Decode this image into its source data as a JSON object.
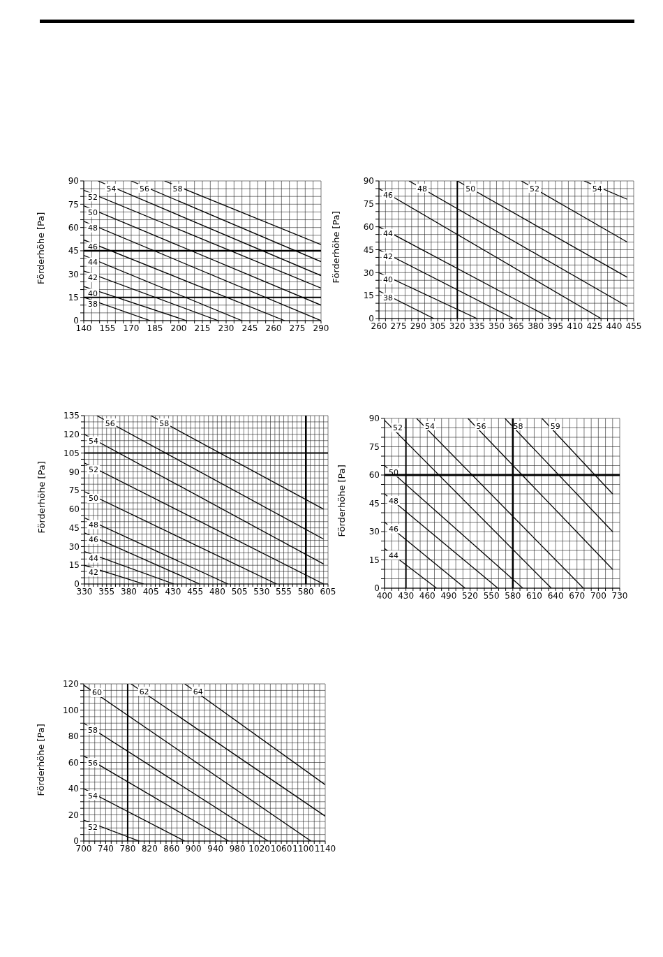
{
  "chart_data": [
    {
      "type": "line",
      "ylabel": "Förderhöhe [Pa]",
      "xlim": [
        140,
        290
      ],
      "ylim": [
        0,
        90
      ],
      "grid": true,
      "legend": false,
      "marker": "none",
      "line_style": "solid",
      "xticks": [
        140,
        {
          "value": 145,
          "label": null
        },
        {
          "value": 150,
          "label": null
        },
        155,
        {
          "value": 160,
          "label": null
        },
        {
          "value": 165,
          "label": null
        },
        170,
        {
          "value": 175,
          "label": null
        },
        {
          "value": 180,
          "label": null
        },
        185,
        {
          "value": 190,
          "label": null
        },
        {
          "value": 195,
          "label": null
        },
        200,
        {
          "value": 205,
          "label": null
        },
        {
          "value": 210,
          "label": null
        },
        215,
        {
          "value": 220,
          "label": null
        },
        {
          "value": 225,
          "label": null
        },
        230,
        {
          "value": 235,
          "label": null
        },
        {
          "value": 240,
          "label": null
        },
        245,
        {
          "value": 250,
          "label": null
        },
        {
          "value": 255,
          "label": null
        },
        260,
        {
          "value": 265,
          "label": null
        },
        {
          "value": 270,
          "label": null
        },
        275,
        {
          "value": 280,
          "label": null
        },
        {
          "value": 285,
          "label": null
        },
        290
      ],
      "yticks": [
        0,
        {
          "value": 5,
          "label": null
        },
        {
          "value": 10,
          "label": null
        },
        15,
        {
          "value": 20,
          "label": null
        },
        {
          "value": 25,
          "label": null
        },
        30,
        {
          "value": 35,
          "label": null
        },
        {
          "value": 40,
          "label": null
        },
        45,
        {
          "value": 50,
          "label": null
        },
        {
          "value": 55,
          "label": null
        },
        60,
        {
          "value": 65,
          "label": null
        },
        {
          "value": 70,
          "label": null
        },
        75,
        {
          "value": 80,
          "label": null
        },
        {
          "value": 85,
          "label": null
        },
        90
      ],
      "ref_lines": [
        {
          "axis": "y",
          "value": 15
        },
        {
          "axis": "y",
          "value": 45
        }
      ],
      "series": [
        {
          "name": "38",
          "color": "#000000",
          "x": [
            140,
            182
          ],
          "values": [
            15,
            0
          ]
        },
        {
          "name": "40",
          "color": "#000000",
          "x": [
            140,
            205
          ],
          "values": [
            22,
            0
          ]
        },
        {
          "name": "42",
          "color": "#000000",
          "x": [
            140,
            225
          ],
          "values": [
            32,
            0
          ]
        },
        {
          "name": "44",
          "color": "#000000",
          "x": [
            140,
            240
          ],
          "values": [
            42,
            0
          ]
        },
        {
          "name": "46",
          "color": "#000000",
          "x": [
            140,
            267
          ],
          "values": [
            52,
            0
          ]
        },
        {
          "name": "48",
          "color": "#000000",
          "x": [
            140,
            290
          ],
          "values": [
            64,
            0
          ]
        },
        {
          "name": "50",
          "color": "#000000",
          "x": [
            140,
            290
          ],
          "values": [
            74,
            10
          ]
        },
        {
          "name": "52",
          "color": "#000000",
          "x": [
            140,
            290
          ],
          "values": [
            84,
            21
          ]
        },
        {
          "name": "54",
          "color": "#000000",
          "x": [
            149,
            290
          ],
          "values": [
            90,
            29
          ]
        },
        {
          "name": "56",
          "color": "#000000",
          "x": [
            170,
            290
          ],
          "values": [
            90,
            38
          ]
        },
        {
          "name": "58",
          "color": "#000000",
          "x": [
            191,
            290
          ],
          "values": [
            90,
            49
          ]
        }
      ]
    },
    {
      "type": "line",
      "ylabel": "Förderhöhe [Pa]",
      "xlim": [
        260,
        455
      ],
      "ylim": [
        0,
        90
      ],
      "grid": true,
      "legend": false,
      "marker": "none",
      "line_style": "solid",
      "xticks": [
        260,
        {
          "value": 265,
          "label": null
        },
        {
          "value": 270,
          "label": null
        },
        275,
        {
          "value": 280,
          "label": null
        },
        {
          "value": 285,
          "label": null
        },
        290,
        {
          "value": 295,
          "label": null
        },
        {
          "value": 300,
          "label": null
        },
        305,
        {
          "value": 310,
          "label": null
        },
        {
          "value": 315,
          "label": null
        },
        320,
        {
          "value": 325,
          "label": null
        },
        {
          "value": 330,
          "label": null
        },
        335,
        {
          "value": 340,
          "label": null
        },
        {
          "value": 345,
          "label": null
        },
        350,
        {
          "value": 355,
          "label": null
        },
        {
          "value": 360,
          "label": null
        },
        365,
        {
          "value": 370,
          "label": null
        },
        {
          "value": 375,
          "label": null
        },
        380,
        {
          "value": 385,
          "label": null
        },
        {
          "value": 390,
          "label": null
        },
        395,
        {
          "value": 400,
          "label": null
        },
        {
          "value": 405,
          "label": null
        },
        410,
        {
          "value": 415,
          "label": null
        },
        {
          "value": 420,
          "label": null
        },
        425,
        {
          "value": 430,
          "label": null
        },
        {
          "value": 435,
          "label": null
        },
        440,
        {
          "value": 445,
          "label": null
        },
        {
          "value": 450,
          "label": null
        },
        455
      ],
      "yticks": [
        0,
        {
          "value": 5,
          "label": null
        },
        {
          "value": 10,
          "label": null
        },
        15,
        {
          "value": 20,
          "label": null
        },
        {
          "value": 25,
          "label": null
        },
        30,
        {
          "value": 35,
          "label": null
        },
        {
          "value": 40,
          "label": null
        },
        45,
        {
          "value": 50,
          "label": null
        },
        {
          "value": 55,
          "label": null
        },
        60,
        {
          "value": 65,
          "label": null
        },
        {
          "value": 70,
          "label": null
        },
        75,
        {
          "value": 80,
          "label": null
        },
        {
          "value": 85,
          "label": null
        },
        90
      ],
      "ref_lines": [
        {
          "axis": "x",
          "value": 320
        }
      ],
      "series": [
        {
          "name": "38",
          "color": "#000000",
          "x": [
            260,
            302
          ],
          "values": [
            18,
            0
          ]
        },
        {
          "name": "40",
          "color": "#000000",
          "x": [
            260,
            335
          ],
          "values": [
            30,
            0
          ]
        },
        {
          "name": "42",
          "color": "#000000",
          "x": [
            260,
            363
          ],
          "values": [
            45,
            0
          ]
        },
        {
          "name": "44",
          "color": "#000000",
          "x": [
            260,
            392
          ],
          "values": [
            60,
            0
          ]
        },
        {
          "name": "46",
          "color": "#000000",
          "x": [
            260,
            430
          ],
          "values": [
            85,
            0
          ]
        },
        {
          "name": "48",
          "color": "#000000",
          "x": [
            283,
            450
          ],
          "values": [
            90,
            8
          ]
        },
        {
          "name": "50",
          "color": "#000000",
          "x": [
            320,
            450
          ],
          "values": [
            90,
            27
          ]
        },
        {
          "name": "52",
          "color": "#000000",
          "x": [
            369,
            450
          ],
          "values": [
            90,
            50
          ]
        },
        {
          "name": "54",
          "color": "#000000",
          "x": [
            417,
            450
          ],
          "values": [
            90,
            78
          ]
        }
      ]
    },
    {
      "type": "line",
      "ylabel": "Förderhöhe [Pa]",
      "xlim": [
        330,
        605
      ],
      "ylim": [
        0,
        135
      ],
      "grid": true,
      "legend": false,
      "marker": "none",
      "line_style": "solid",
      "xticks": [
        330,
        {
          "value": 335,
          "label": null
        },
        {
          "value": 340,
          "label": null
        },
        {
          "value": 345,
          "label": null
        },
        {
          "value": 350,
          "label": null
        },
        355,
        {
          "value": 360,
          "label": null
        },
        {
          "value": 365,
          "label": null
        },
        {
          "value": 370,
          "label": null
        },
        {
          "value": 375,
          "label": null
        },
        380,
        {
          "value": 385,
          "label": null
        },
        {
          "value": 390,
          "label": null
        },
        {
          "value": 395,
          "label": null
        },
        {
          "value": 400,
          "label": null
        },
        405,
        {
          "value": 410,
          "label": null
        },
        {
          "value": 415,
          "label": null
        },
        {
          "value": 420,
          "label": null
        },
        {
          "value": 425,
          "label": null
        },
        430,
        {
          "value": 435,
          "label": null
        },
        {
          "value": 440,
          "label": null
        },
        {
          "value": 445,
          "label": null
        },
        {
          "value": 450,
          "label": null
        },
        455,
        {
          "value": 460,
          "label": null
        },
        {
          "value": 465,
          "label": null
        },
        {
          "value": 470,
          "label": null
        },
        {
          "value": 475,
          "label": null
        },
        480,
        {
          "value": 485,
          "label": null
        },
        {
          "value": 490,
          "label": null
        },
        {
          "value": 495,
          "label": null
        },
        {
          "value": 500,
          "label": null
        },
        505,
        {
          "value": 510,
          "label": null
        },
        {
          "value": 515,
          "label": null
        },
        {
          "value": 520,
          "label": null
        },
        {
          "value": 525,
          "label": null
        },
        530,
        {
          "value": 535,
          "label": null
        },
        {
          "value": 540,
          "label": null
        },
        {
          "value": 545,
          "label": null
        },
        {
          "value": 550,
          "label": null
        },
        555,
        {
          "value": 560,
          "label": null
        },
        {
          "value": 565,
          "label": null
        },
        {
          "value": 570,
          "label": null
        },
        {
          "value": 575,
          "label": null
        },
        580,
        {
          "value": 585,
          "label": null
        },
        {
          "value": 590,
          "label": null
        },
        {
          "value": 595,
          "label": null
        },
        {
          "value": 600,
          "label": null
        },
        605
      ],
      "yticks": [
        0,
        {
          "value": 5,
          "label": null
        },
        {
          "value": 10,
          "label": null
        },
        15,
        {
          "value": 20,
          "label": null
        },
        {
          "value": 25,
          "label": null
        },
        30,
        {
          "value": 35,
          "label": null
        },
        {
          "value": 40,
          "label": null
        },
        45,
        {
          "value": 50,
          "label": null
        },
        {
          "value": 55,
          "label": null
        },
        60,
        {
          "value": 65,
          "label": null
        },
        {
          "value": 70,
          "label": null
        },
        75,
        {
          "value": 80,
          "label": null
        },
        {
          "value": 85,
          "label": null
        },
        90,
        {
          "value": 95,
          "label": null
        },
        {
          "value": 100,
          "label": null
        },
        105,
        {
          "value": 110,
          "label": null
        },
        {
          "value": 115,
          "label": null
        },
        120,
        {
          "value": 125,
          "label": null
        },
        {
          "value": 130,
          "label": null
        },
        135
      ],
      "ref_lines": [
        {
          "axis": "y",
          "value": 105
        },
        {
          "axis": "x",
          "value": 580
        }
      ],
      "series": [
        {
          "name": "42",
          "color": "#000000",
          "x": [
            330,
            397
          ],
          "values": [
            15,
            0
          ]
        },
        {
          "name": "44",
          "color": "#000000",
          "x": [
            330,
            431
          ],
          "values": [
            26,
            0
          ]
        },
        {
          "name": "46",
          "color": "#000000",
          "x": [
            330,
            460
          ],
          "values": [
            41,
            0
          ]
        },
        {
          "name": "48",
          "color": "#000000",
          "x": [
            330,
            492
          ],
          "values": [
            53,
            0
          ]
        },
        {
          "name": "50",
          "color": "#000000",
          "x": [
            330,
            547
          ],
          "values": [
            74,
            0
          ]
        },
        {
          "name": "52",
          "color": "#000000",
          "x": [
            330,
            600
          ],
          "values": [
            97,
            0
          ]
        },
        {
          "name": "54",
          "color": "#000000",
          "x": [
            330,
            600
          ],
          "values": [
            120,
            16
          ]
        },
        {
          "name": "56",
          "color": "#000000",
          "x": [
            344,
            600
          ],
          "values": [
            135,
            36
          ]
        },
        {
          "name": "58",
          "color": "#000000",
          "x": [
            405,
            600
          ],
          "values": [
            135,
            60
          ]
        }
      ]
    },
    {
      "type": "line",
      "ylabel": "Förderhöhe [Pa]",
      "xlim": [
        400,
        730
      ],
      "ylim": [
        0,
        90
      ],
      "grid": true,
      "legend": false,
      "marker": "none",
      "line_style": "solid",
      "xticks": [
        400,
        {
          "value": 410,
          "label": null
        },
        {
          "value": 420,
          "label": null
        },
        430,
        {
          "value": 440,
          "label": null
        },
        {
          "value": 450,
          "label": null
        },
        460,
        {
          "value": 470,
          "label": null
        },
        {
          "value": 480,
          "label": null
        },
        490,
        {
          "value": 500,
          "label": null
        },
        {
          "value": 510,
          "label": null
        },
        520,
        {
          "value": 530,
          "label": null
        },
        {
          "value": 540,
          "label": null
        },
        550,
        {
          "value": 560,
          "label": null
        },
        {
          "value": 570,
          "label": null
        },
        580,
        {
          "value": 590,
          "label": null
        },
        {
          "value": 600,
          "label": null
        },
        610,
        {
          "value": 620,
          "label": null
        },
        {
          "value": 630,
          "label": null
        },
        640,
        {
          "value": 650,
          "label": null
        },
        {
          "value": 660,
          "label": null
        },
        670,
        {
          "value": 680,
          "label": null
        },
        {
          "value": 690,
          "label": null
        },
        700,
        {
          "value": 710,
          "label": null
        },
        {
          "value": 720,
          "label": null
        },
        730
      ],
      "yticks": [
        0,
        {
          "value": 5,
          "label": null
        },
        {
          "value": 10,
          "label": null
        },
        15,
        {
          "value": 20,
          "label": null
        },
        {
          "value": 25,
          "label": null
        },
        30,
        {
          "value": 35,
          "label": null
        },
        {
          "value": 40,
          "label": null
        },
        45,
        {
          "value": 50,
          "label": null
        },
        {
          "value": 55,
          "label": null
        },
        60,
        {
          "value": 65,
          "label": null
        },
        {
          "value": 70,
          "label": null
        },
        75,
        {
          "value": 80,
          "label": null
        },
        {
          "value": 85,
          "label": null
        },
        90
      ],
      "ref_lines": [
        {
          "axis": "x",
          "value": 430
        },
        {
          "axis": "x",
          "value": 580
        },
        {
          "axis": "y",
          "value": 60
        }
      ],
      "series": [
        {
          "name": "44",
          "color": "#000000",
          "x": [
            400,
            473
          ],
          "values": [
            21,
            0
          ]
        },
        {
          "name": "46",
          "color": "#000000",
          "x": [
            400,
            513
          ],
          "values": [
            35,
            0
          ]
        },
        {
          "name": "48",
          "color": "#000000",
          "x": [
            400,
            559
          ],
          "values": [
            50,
            0
          ]
        },
        {
          "name": "50",
          "color": "#000000",
          "x": [
            400,
            594
          ],
          "values": [
            65,
            0
          ]
        },
        {
          "name": "52",
          "color": "#000000",
          "x": [
            400,
            634
          ],
          "values": [
            89,
            0
          ]
        },
        {
          "name": "54",
          "color": "#000000",
          "x": [
            445,
            679
          ],
          "values": [
            90,
            0
          ]
        },
        {
          "name": "56",
          "color": "#000000",
          "x": [
            517,
            720
          ],
          "values": [
            90,
            10
          ]
        },
        {
          "name": "58",
          "color": "#000000",
          "x": [
            569,
            720
          ],
          "values": [
            90,
            30
          ]
        },
        {
          "name": "59",
          "color": "#000000",
          "x": [
            621,
            720
          ],
          "values": [
            90,
            50
          ]
        }
      ]
    },
    {
      "type": "line",
      "ylabel": "Förderhöhe [Pa]",
      "xlim": [
        700,
        1140
      ],
      "ylim": [
        0,
        120
      ],
      "grid": true,
      "legend": false,
      "marker": "none",
      "line_style": "solid",
      "xticks": [
        700,
        {
          "value": 710,
          "label": null
        },
        {
          "value": 720,
          "label": null
        },
        {
          "value": 730,
          "label": null
        },
        740,
        {
          "value": 750,
          "label": null
        },
        {
          "value": 760,
          "label": null
        },
        {
          "value": 770,
          "label": null
        },
        780,
        {
          "value": 790,
          "label": null
        },
        {
          "value": 800,
          "label": null
        },
        {
          "value": 810,
          "label": null
        },
        820,
        {
          "value": 830,
          "label": null
        },
        {
          "value": 840,
          "label": null
        },
        {
          "value": 850,
          "label": null
        },
        860,
        {
          "value": 870,
          "label": null
        },
        {
          "value": 880,
          "label": null
        },
        {
          "value": 890,
          "label": null
        },
        900,
        {
          "value": 910,
          "label": null
        },
        {
          "value": 920,
          "label": null
        },
        {
          "value": 930,
          "label": null
        },
        940,
        {
          "value": 950,
          "label": null
        },
        {
          "value": 960,
          "label": null
        },
        {
          "value": 970,
          "label": null
        },
        980,
        {
          "value": 990,
          "label": null
        },
        {
          "value": 1000,
          "label": null
        },
        {
          "value": 1010,
          "label": null
        },
        1020,
        {
          "value": 1030,
          "label": null
        },
        {
          "value": 1040,
          "label": null
        },
        {
          "value": 1050,
          "label": null
        },
        1060,
        {
          "value": 1070,
          "label": null
        },
        {
          "value": 1080,
          "label": null
        },
        {
          "value": 1090,
          "label": null
        },
        1100,
        {
          "value": 1110,
          "label": null
        },
        {
          "value": 1120,
          "label": null
        },
        {
          "value": 1130,
          "label": null
        },
        1140
      ],
      "yticks": [
        0,
        {
          "value": 5,
          "label": null
        },
        {
          "value": 10,
          "label": null
        },
        {
          "value": 15,
          "label": null
        },
        20,
        {
          "value": 25,
          "label": null
        },
        {
          "value": 30,
          "label": null
        },
        {
          "value": 35,
          "label": null
        },
        40,
        {
          "value": 45,
          "label": null
        },
        {
          "value": 50,
          "label": null
        },
        {
          "value": 55,
          "label": null
        },
        60,
        {
          "value": 65,
          "label": null
        },
        {
          "value": 70,
          "label": null
        },
        {
          "value": 75,
          "label": null
        },
        80,
        {
          "value": 85,
          "label": null
        },
        {
          "value": 90,
          "label": null
        },
        {
          "value": 95,
          "label": null
        },
        100,
        {
          "value": 105,
          "label": null
        },
        {
          "value": 110,
          "label": null
        },
        {
          "value": 115,
          "label": null
        },
        120
      ],
      "ref_lines": [
        {
          "axis": "x",
          "value": 780
        }
      ],
      "series": [
        {
          "name": "52",
          "color": "#000000",
          "x": [
            700,
            801
          ],
          "values": [
            16,
            0
          ]
        },
        {
          "name": "54",
          "color": "#000000",
          "x": [
            700,
            884
          ],
          "values": [
            40,
            0
          ]
        },
        {
          "name": "56",
          "color": "#000000",
          "x": [
            700,
            964
          ],
          "values": [
            65,
            0
          ]
        },
        {
          "name": "58",
          "color": "#000000",
          "x": [
            700,
            1036
          ],
          "values": [
            90,
            0
          ]
        },
        {
          "name": "60",
          "color": "#000000",
          "x": [
            700,
            1114
          ],
          "values": [
            119,
            0
          ]
        },
        {
          "name": "62",
          "color": "#000000",
          "x": [
            786,
            1140
          ],
          "values": [
            120,
            19
          ]
        },
        {
          "name": "64",
          "color": "#000000",
          "x": [
            884,
            1140
          ],
          "values": [
            120,
            43
          ]
        }
      ]
    }
  ]
}
